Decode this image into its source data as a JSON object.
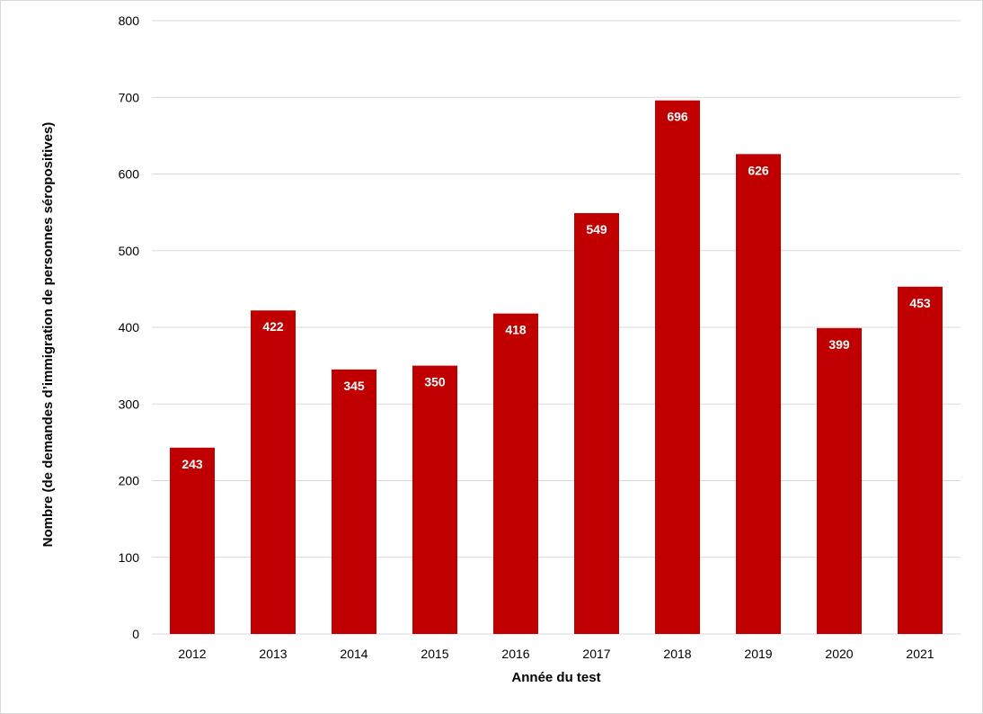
{
  "chart_data": {
    "type": "bar",
    "title": "",
    "xlabel": "Année du test",
    "ylabel": "Nombre (de demandes d’immigration de personnes séropositives)",
    "categories": [
      "2012",
      "2013",
      "2014",
      "2015",
      "2016",
      "2017",
      "2018",
      "2019",
      "2020",
      "2021"
    ],
    "values": [
      243,
      422,
      345,
      350,
      418,
      549,
      696,
      626,
      399,
      453
    ],
    "ylim": [
      0,
      800
    ],
    "yticks": [
      0,
      100,
      200,
      300,
      400,
      500,
      600,
      700,
      800
    ],
    "grid": true,
    "legend": "none",
    "bar_color": "#c00000",
    "grid_color": "#d9d9d9",
    "label_color": "#ffffff"
  }
}
